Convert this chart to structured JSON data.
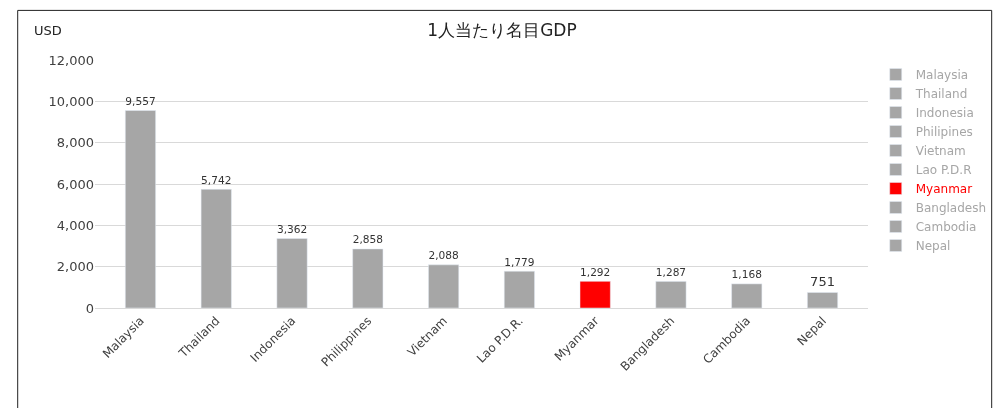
{
  "chart_data": {
    "type": "bar",
    "title": "1人当たり名目GDP",
    "ylabel": "USD",
    "categories": [
      "Malaysia",
      "Thailand",
      "Indonesia",
      "Philippines",
      "Vietnam",
      "Lao P.D.R.",
      "Myanmar",
      "Bangladesh",
      "Cambodia",
      "Nepal"
    ],
    "series": [
      {
        "name": "Malaysia",
        "color": "#a6a6a6",
        "values": [
          9557,
          null,
          null,
          null,
          null,
          null,
          null,
          null,
          null,
          null
        ],
        "value_labels": [
          "9,557",
          null,
          null,
          null,
          null,
          null,
          null,
          null,
          null,
          null
        ]
      },
      {
        "name": "Thailand",
        "color": "#a6a6a6",
        "values": [
          null,
          5742,
          null,
          null,
          null,
          null,
          null,
          null,
          null,
          null
        ],
        "value_labels": [
          null,
          "5,742",
          null,
          null,
          null,
          null,
          null,
          null,
          null,
          null
        ]
      },
      {
        "name": "Indonesia",
        "color": "#a6a6a6",
        "values": [
          null,
          null,
          3362,
          null,
          null,
          null,
          null,
          null,
          null,
          null
        ],
        "value_labels": [
          null,
          null,
          "3,362",
          null,
          null,
          null,
          null,
          null,
          null,
          null
        ]
      },
      {
        "name": "Philipines",
        "color": "#a6a6a6",
        "values": [
          null,
          null,
          null,
          2858,
          null,
          null,
          null,
          null,
          null,
          null
        ],
        "value_labels": [
          null,
          null,
          null,
          "2,858",
          null,
          null,
          null,
          null,
          null,
          null
        ]
      },
      {
        "name": "Vietnam",
        "color": "#a6a6a6",
        "values": [
          null,
          null,
          null,
          null,
          2088,
          null,
          null,
          null,
          null,
          null
        ],
        "value_labels": [
          null,
          null,
          null,
          null,
          "2,088",
          null,
          null,
          null,
          null,
          null
        ]
      },
      {
        "name": "Lao P.D.R",
        "color": "#a6a6a6",
        "values": [
          null,
          null,
          null,
          null,
          null,
          1779,
          null,
          null,
          null,
          null
        ],
        "value_labels": [
          null,
          null,
          null,
          null,
          null,
          "1,779",
          null,
          null,
          null,
          null
        ]
      },
      {
        "name": "Myanmar",
        "color": "#ff0000",
        "values": [
          null,
          null,
          null,
          null,
          null,
          null,
          1292,
          null,
          null,
          null
        ],
        "value_labels": [
          null,
          null,
          null,
          null,
          null,
          null,
          "1,292",
          null,
          null,
          null
        ]
      },
      {
        "name": "Bangladesh",
        "color": "#a6a6a6",
        "values": [
          null,
          null,
          null,
          null,
          null,
          null,
          null,
          1287,
          null,
          null
        ],
        "value_labels": [
          null,
          null,
          null,
          null,
          null,
          null,
          null,
          "1,287",
          null,
          null
        ]
      },
      {
        "name": "Cambodia",
        "color": "#a6a6a6",
        "values": [
          null,
          null,
          null,
          null,
          null,
          null,
          null,
          null,
          1168,
          null
        ],
        "value_labels": [
          null,
          null,
          null,
          null,
          null,
          null,
          null,
          null,
          "1,168",
          null
        ]
      },
      {
        "name": "Nepal",
        "color": "#a6a6a6",
        "values": [
          null,
          null,
          null,
          null,
          null,
          null,
          null,
          null,
          null,
          751
        ],
        "value_labels": [
          null,
          null,
          null,
          null,
          null,
          null,
          null,
          null,
          null,
          "751"
        ]
      }
    ],
    "ylim": [
      0,
      12000
    ],
    "yticks": [
      0,
      {
        "value": 2000,
        "label": "2,000"
      },
      {
        "value": 4000,
        "label": "4,000"
      },
      {
        "value": 6000,
        "label": "6,000"
      },
      {
        "value": 8000,
        "label": "8,000"
      },
      {
        "value": 10000,
        "label": "10,000"
      },
      {
        "value": 12000,
        "label": "12,000"
      }
    ],
    "grid": "y",
    "legend": "right"
  }
}
